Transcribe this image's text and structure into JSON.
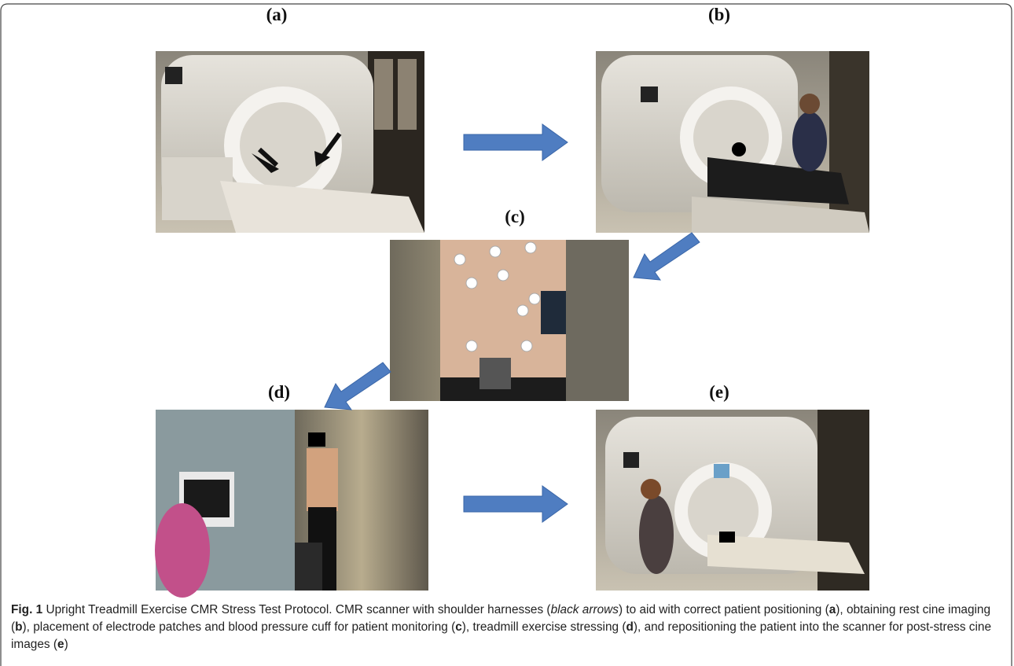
{
  "figure": {
    "panels": [
      {
        "label": "(a)"
      },
      {
        "label": "(b)"
      },
      {
        "label": "(c)"
      },
      {
        "label": "(d)"
      },
      {
        "label": "(e)"
      }
    ],
    "caption": [
      {
        "text": "Fig. 1",
        "style": "bold"
      },
      {
        "text": " Upright Treadmill Exercise CMR Stress Test Protocol. CMR scanner with shoulder harnesses (",
        "style": "normal"
      },
      {
        "text": "black arrows",
        "style": "italic"
      },
      {
        "text": ") to aid with correct patient positioning (",
        "style": "normal"
      },
      {
        "text": "a",
        "style": "bold"
      },
      {
        "text": "), obtaining rest cine imaging (",
        "style": "normal"
      },
      {
        "text": "b",
        "style": "bold"
      },
      {
        "text": "), placement of electrode patches and blood pressure cuff for patient monitoring (",
        "style": "normal"
      },
      {
        "text": "c",
        "style": "bold"
      },
      {
        "text": "), treadmill exercise stressing (",
        "style": "normal"
      },
      {
        "text": "d",
        "style": "bold"
      },
      {
        "text": "), and repositioning the patient into the scanner for post-stress cine images (",
        "style": "normal"
      },
      {
        "text": "e",
        "style": "bold"
      },
      {
        "text": ")",
        "style": "normal"
      }
    ]
  }
}
